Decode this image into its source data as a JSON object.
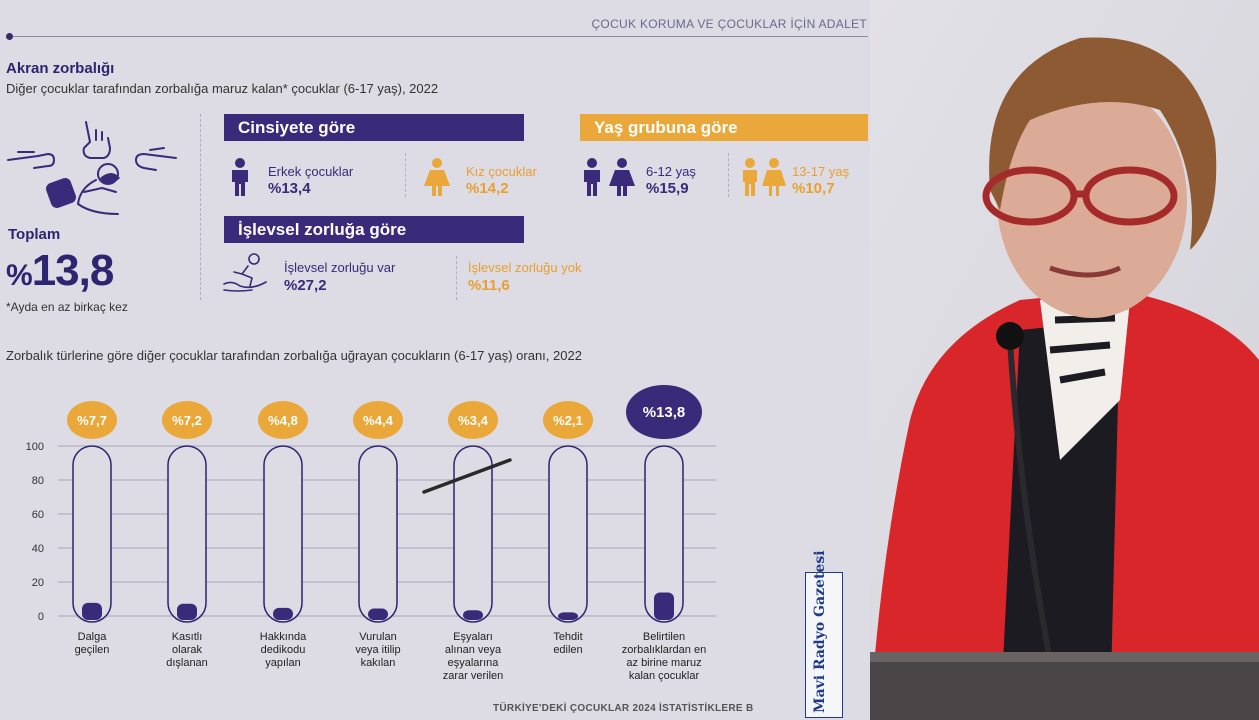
{
  "header": {
    "title": "ÇOCUK KORUMA VE ÇOCUKLAR İÇİN ADALET"
  },
  "section": {
    "title": "Akran zorbalığı",
    "subtitle": "Diğer çocuklar tarafından zorbalığa maruz kalan* çocuklar (6-17 yaş), 2022",
    "total_label": "Toplam",
    "total_prefix": "%",
    "total_value": "13,8",
    "note": "*Ayda en az birkaç kez"
  },
  "gender": {
    "title": "Cinsiyete göre",
    "items": [
      {
        "label": "Erkek çocuklar",
        "value": "%13,4"
      },
      {
        "label": "Kız çocuklar",
        "value": "%14,2"
      }
    ]
  },
  "age": {
    "title": "Yaş grubuna göre",
    "items": [
      {
        "label": "6-12 yaş",
        "value": "%15,9"
      },
      {
        "label": "13-17 yaş",
        "value": "%10,7"
      }
    ]
  },
  "disability": {
    "title": "İşlevsel zorluğa göre",
    "items": [
      {
        "label": "İşlevsel zorluğu var",
        "value": "%27,2"
      },
      {
        "label": "İşlevsel zorluğu yok",
        "value": "%11,6"
      }
    ]
  },
  "chart_title": "Zorbalık türlerine göre diğer çocuklar tarafından zorbalığa uğrayan çocukların (6-17 yaş) oranı, 2022",
  "footer": "TÜRKİYE'DEKİ ÇOCUKLAR 2024 İSTATİSTİKLERE B",
  "watermark": "Mavi Radyo Gazetesi",
  "colors": {
    "purple": "#3a2a7a",
    "orange": "#eba83a",
    "bg": "#dddbe3"
  },
  "chart_data": {
    "type": "bar",
    "categories": [
      [
        "Dalga",
        "geçilen"
      ],
      [
        "Kasıtlı",
        "olarak",
        "dışlanan"
      ],
      [
        "Hakkında",
        "dedikodu",
        "yapılan"
      ],
      [
        "Vurulan",
        "veya itilip",
        "kakılan"
      ],
      [
        "Eşyaları",
        "alınan veya",
        "eşyalarına",
        "zarar verilen"
      ],
      [
        "Tehdit",
        "edilen"
      ],
      [
        "Belirtilen",
        "zorbalıklardan en",
        "az birine maruz",
        "kalan çocuklar"
      ]
    ],
    "values": [
      7.7,
      7.2,
      4.8,
      4.4,
      3.4,
      2.1,
      13.8
    ],
    "data_labels": [
      "%7,7",
      "%7,2",
      "%4,8",
      "%4,4",
      "%3,4",
      "%2,1",
      "%13,8"
    ],
    "yticks": [
      "100",
      "80",
      "60",
      "40",
      "20",
      "0"
    ],
    "ylim": [
      0,
      100
    ],
    "grid": true
  }
}
